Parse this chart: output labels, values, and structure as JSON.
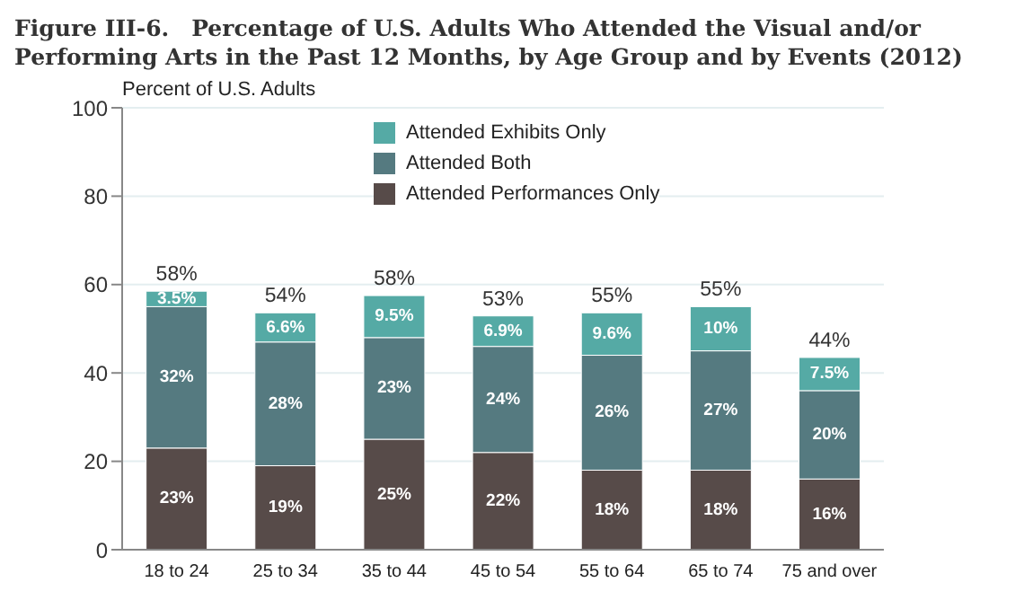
{
  "chart_data": {
    "type": "bar",
    "title": "Figure III-6. Percentage of U.S. Adults Who Attended the Visual and/or Performing Arts in the Past 12 Months, by Age Group and by Events (2012)",
    "ylabel": "Percent of U.S. Adults",
    "categories": [
      "18 to 24",
      "25 to 34",
      "35 to 44",
      "45 to 54",
      "55 to 64",
      "65 to 74",
      "75 and over"
    ],
    "series": [
      {
        "name": "Attended Performances Only",
        "color": "#574b49",
        "values": [
          23,
          19,
          25,
          22,
          18,
          18,
          16
        ],
        "value_labels": [
          "23%",
          "19%",
          "25%",
          "22%",
          "18%",
          "18%",
          "16%"
        ]
      },
      {
        "name": "Attended Both",
        "color": "#557a80",
        "values": [
          32,
          28,
          23,
          24,
          26,
          27,
          20
        ],
        "value_labels": [
          "32%",
          "28%",
          "23%",
          "24%",
          "26%",
          "27%",
          "20%"
        ]
      },
      {
        "name": "Attended Exhibits Only",
        "color": "#55aaa5",
        "values": [
          3.5,
          6.6,
          9.5,
          6.9,
          9.6,
          10,
          7.5
        ],
        "value_labels": [
          "3.5%",
          "6.6%",
          "9.5%",
          "6.9%",
          "9.6%",
          "10%",
          "7.5%"
        ]
      }
    ],
    "stacked": true,
    "totals": [
      "58%",
      "54%",
      "58%",
      "53%",
      "55%",
      "55%",
      "44%"
    ],
    "ylim": [
      0,
      100
    ],
    "yticks": [
      0,
      20,
      40,
      60,
      80,
      100
    ],
    "grid": "y",
    "legend": "top"
  }
}
